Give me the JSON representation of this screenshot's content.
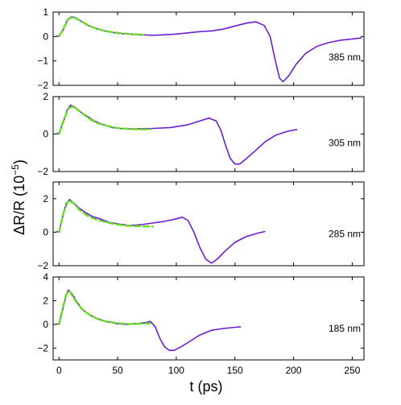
{
  "chart_data": {
    "type": "line",
    "ylabel_main": "ΔR/R (10",
    "ylabel_exp": "−5",
    "ylabel_close": ")",
    "xlabel": "t  (ps)",
    "xlim": [
      -5,
      260
    ],
    "xticks": [
      0,
      50,
      100,
      150,
      200,
      250
    ],
    "colors": {
      "data": "#6a1fd1",
      "fit": "#66dd22"
    },
    "panels": [
      {
        "label": "385 nm",
        "ylim": [
          -2,
          1
        ],
        "yticks": [
          -2,
          -1,
          0,
          1
        ],
        "series": [
          {
            "kind": "data",
            "points": [
              [
                -3,
                0
              ],
              [
                0,
                0.02
              ],
              [
                4,
                0.3
              ],
              [
                7,
                0.68
              ],
              [
                10,
                0.8
              ],
              [
                14,
                0.78
              ],
              [
                18,
                0.65
              ],
              [
                22,
                0.52
              ],
              [
                28,
                0.38
              ],
              [
                35,
                0.27
              ],
              [
                42,
                0.2
              ],
              [
                50,
                0.13
              ],
              [
                60,
                0.1
              ],
              [
                70,
                0.07
              ],
              [
                80,
                0.05
              ],
              [
                90,
                0.07
              ],
              [
                100,
                0.1
              ],
              [
                110,
                0.15
              ],
              [
                120,
                0.2
              ],
              [
                130,
                0.23
              ],
              [
                140,
                0.3
              ],
              [
                150,
                0.43
              ],
              [
                160,
                0.55
              ],
              [
                168,
                0.6
              ],
              [
                175,
                0.45
              ],
              [
                180,
                0
              ],
              [
                184,
                -0.9
              ],
              [
                188,
                -1.7
              ],
              [
                191,
                -1.85
              ],
              [
                196,
                -1.6
              ],
              [
                202,
                -1.15
              ],
              [
                210,
                -0.7
              ],
              [
                220,
                -0.4
              ],
              [
                230,
                -0.25
              ],
              [
                240,
                -0.15
              ],
              [
                250,
                -0.1
              ],
              [
                258,
                -0.05
              ]
            ]
          },
          {
            "kind": "fit",
            "points": [
              [
                0,
                0
              ],
              [
                4,
                0.35
              ],
              [
                8,
                0.72
              ],
              [
                12,
                0.8
              ],
              [
                18,
                0.65
              ],
              [
                25,
                0.45
              ],
              [
                32,
                0.32
              ],
              [
                40,
                0.22
              ],
              [
                50,
                0.15
              ],
              [
                60,
                0.1
              ],
              [
                72,
                0.07
              ]
            ]
          }
        ]
      },
      {
        "label": "305 nm",
        "ylim": [
          -2,
          2
        ],
        "yticks": [
          -2,
          0,
          2
        ],
        "series": [
          {
            "kind": "data",
            "points": [
              [
                -3,
                0
              ],
              [
                0,
                0.05
              ],
              [
                4,
                0.7
              ],
              [
                7,
                1.3
              ],
              [
                10,
                1.55
              ],
              [
                14,
                1.4
              ],
              [
                18,
                1.2
              ],
              [
                24,
                0.95
              ],
              [
                30,
                0.7
              ],
              [
                38,
                0.5
              ],
              [
                45,
                0.35
              ],
              [
                55,
                0.28
              ],
              [
                65,
                0.28
              ],
              [
                80,
                0.3
              ],
              [
                95,
                0.35
              ],
              [
                110,
                0.5
              ],
              [
                120,
                0.7
              ],
              [
                128,
                0.85
              ],
              [
                134,
                0.7
              ],
              [
                138,
                0.2
              ],
              [
                142,
                -0.6
              ],
              [
                146,
                -1.3
              ],
              [
                150,
                -1.6
              ],
              [
                154,
                -1.6
              ],
              [
                160,
                -1.3
              ],
              [
                168,
                -0.85
              ],
              [
                176,
                -0.4
              ],
              [
                185,
                -0.05
              ],
              [
                195,
                0.15
              ],
              [
                203,
                0.25
              ]
            ]
          },
          {
            "kind": "fit",
            "points": [
              [
                0,
                0
              ],
              [
                4,
                0.75
              ],
              [
                8,
                1.35
              ],
              [
                12,
                1.5
              ],
              [
                18,
                1.2
              ],
              [
                25,
                0.85
              ],
              [
                32,
                0.6
              ],
              [
                40,
                0.45
              ],
              [
                50,
                0.32
              ],
              [
                60,
                0.27
              ],
              [
                70,
                0.25
              ],
              [
                78,
                0.25
              ]
            ]
          }
        ]
      },
      {
        "label": "285 nm",
        "ylim": [
          -2,
          3
        ],
        "yticks": [
          -2,
          0,
          2
        ],
        "series": [
          {
            "kind": "data",
            "points": [
              [
                -3,
                0
              ],
              [
                0,
                0.05
              ],
              [
                3,
                0.9
              ],
              [
                6,
                1.7
              ],
              [
                9,
                1.95
              ],
              [
                13,
                1.7
              ],
              [
                17,
                1.45
              ],
              [
                22,
                1.2
              ],
              [
                28,
                0.95
              ],
              [
                35,
                0.8
              ],
              [
                42,
                0.6
              ],
              [
                50,
                0.5
              ],
              [
                60,
                0.4
              ],
              [
                70,
                0.45
              ],
              [
                80,
                0.55
              ],
              [
                90,
                0.65
              ],
              [
                100,
                0.8
              ],
              [
                105,
                0.9
              ],
              [
                110,
                0.7
              ],
              [
                115,
                0
              ],
              [
                120,
                -0.9
              ],
              [
                125,
                -1.6
              ],
              [
                130,
                -1.85
              ],
              [
                135,
                -1.6
              ],
              [
                142,
                -1.1
              ],
              [
                150,
                -0.6
              ],
              [
                160,
                -0.25
              ],
              [
                170,
                -0.05
              ],
              [
                176,
                0.05
              ]
            ]
          },
          {
            "kind": "fit",
            "points": [
              [
                0,
                0
              ],
              [
                4,
                1.2
              ],
              [
                8,
                1.9
              ],
              [
                12,
                1.75
              ],
              [
                18,
                1.3
              ],
              [
                25,
                0.95
              ],
              [
                32,
                0.75
              ],
              [
                40,
                0.6
              ],
              [
                50,
                0.45
              ],
              [
                60,
                0.38
              ],
              [
                72,
                0.35
              ],
              [
                80,
                0.33
              ]
            ]
          }
        ]
      },
      {
        "label": "185 nm",
        "ylim": [
          -3,
          4
        ],
        "yticks": [
          -2,
          0,
          2,
          4
        ],
        "series": [
          {
            "kind": "data",
            "points": [
              [
                -3,
                0
              ],
              [
                0,
                0.05
              ],
              [
                3,
                1.2
              ],
              [
                6,
                2.4
              ],
              [
                8,
                2.9
              ],
              [
                11,
                2.6
              ],
              [
                14,
                2.1
              ],
              [
                18,
                1.5
              ],
              [
                22,
                1.1
              ],
              [
                28,
                0.7
              ],
              [
                35,
                0.4
              ],
              [
                42,
                0.2
              ],
              [
                50,
                0.05
              ],
              [
                58,
                0
              ],
              [
                66,
                0.05
              ],
              [
                74,
                0.15
              ],
              [
                78,
                0.25
              ],
              [
                82,
                -0.2
              ],
              [
                86,
                -1.2
              ],
              [
                90,
                -1.9
              ],
              [
                94,
                -2.2
              ],
              [
                98,
                -2.2
              ],
              [
                104,
                -1.9
              ],
              [
                112,
                -1.4
              ],
              [
                120,
                -0.9
              ],
              [
                130,
                -0.5
              ],
              [
                140,
                -0.35
              ],
              [
                150,
                -0.25
              ],
              [
                155,
                -0.2
              ]
            ]
          },
          {
            "kind": "fit",
            "points": [
              [
                0,
                0
              ],
              [
                3,
                1.3
              ],
              [
                6,
                2.5
              ],
              [
                9,
                2.8
              ],
              [
                12,
                2.3
              ],
              [
                16,
                1.7
              ],
              [
                20,
                1.25
              ],
              [
                26,
                0.8
              ],
              [
                33,
                0.45
              ],
              [
                40,
                0.25
              ],
              [
                50,
                0.1
              ],
              [
                60,
                0.03
              ],
              [
                70,
                0.05
              ],
              [
                78,
                0.1
              ]
            ]
          }
        ]
      }
    ]
  }
}
